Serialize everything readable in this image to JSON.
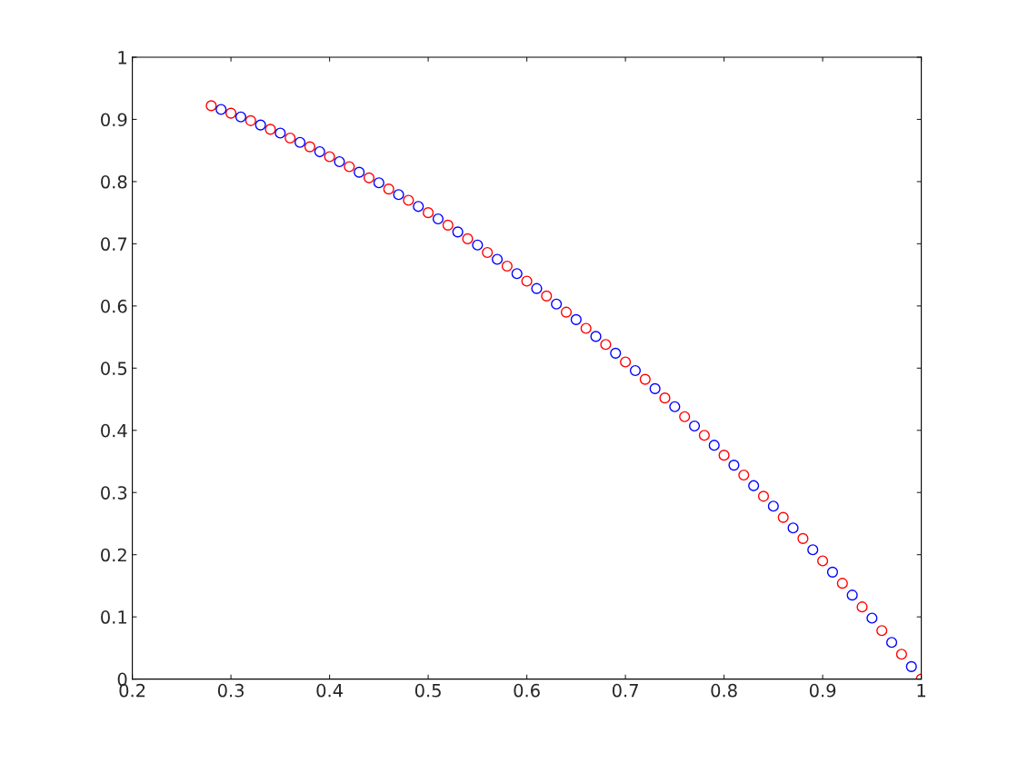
{
  "chart_data": {
    "type": "scatter",
    "marker": "circle",
    "grid": false,
    "legend": false,
    "xlim": [
      0.2,
      1
    ],
    "xticks": [
      0.2,
      0.3,
      0.4,
      0.5,
      0.6,
      0.7,
      0.8,
      0.9,
      1
    ],
    "ylim": [
      0,
      1
    ],
    "yticks": [
      0,
      0.1,
      0.2,
      0.3,
      0.4,
      0.5,
      0.6,
      0.7,
      0.8,
      0.9,
      1
    ],
    "series": [
      {
        "color": "#ff0000",
        "x": [
          0.28,
          0.3,
          0.32,
          0.34,
          0.36,
          0.38,
          0.4,
          0.42,
          0.44,
          0.46,
          0.48,
          0.5,
          0.52,
          0.54,
          0.56,
          0.58,
          0.6,
          0.62,
          0.64,
          0.66,
          0.68,
          0.7,
          0.72,
          0.74,
          0.76,
          0.78,
          0.8,
          0.82,
          0.84,
          0.86,
          0.88,
          0.9,
          0.92,
          0.94,
          0.96,
          0.98,
          1.0
        ],
        "values": [
          0.922,
          0.91,
          0.898,
          0.884,
          0.87,
          0.856,
          0.84,
          0.824,
          0.806,
          0.788,
          0.77,
          0.75,
          0.73,
          0.708,
          0.686,
          0.664,
          0.64,
          0.616,
          0.59,
          0.564,
          0.538,
          0.51,
          0.482,
          0.452,
          0.422,
          0.392,
          0.36,
          0.328,
          0.294,
          0.26,
          0.226,
          0.19,
          0.154,
          0.116,
          0.078,
          0.04,
          0
        ]
      },
      {
        "color": "#0000ff",
        "x": [
          0.29,
          0.31,
          0.33,
          0.35,
          0.37,
          0.39,
          0.41,
          0.43,
          0.45,
          0.47,
          0.49,
          0.51,
          0.53,
          0.55,
          0.57,
          0.59,
          0.61,
          0.63,
          0.65,
          0.67,
          0.69,
          0.71,
          0.73,
          0.75,
          0.77,
          0.79,
          0.81,
          0.83,
          0.85,
          0.87,
          0.89,
          0.91,
          0.93,
          0.95,
          0.97,
          0.99
        ],
        "values": [
          0.916,
          0.904,
          0.891,
          0.878,
          0.863,
          0.848,
          0.832,
          0.815,
          0.798,
          0.779,
          0.76,
          0.74,
          0.719,
          0.698,
          0.675,
          0.652,
          0.628,
          0.603,
          0.578,
          0.551,
          0.524,
          0.496,
          0.467,
          0.438,
          0.407,
          0.376,
          0.344,
          0.311,
          0.278,
          0.243,
          0.208,
          0.172,
          0.135,
          0.098,
          0.059,
          0.02
        ]
      }
    ]
  }
}
